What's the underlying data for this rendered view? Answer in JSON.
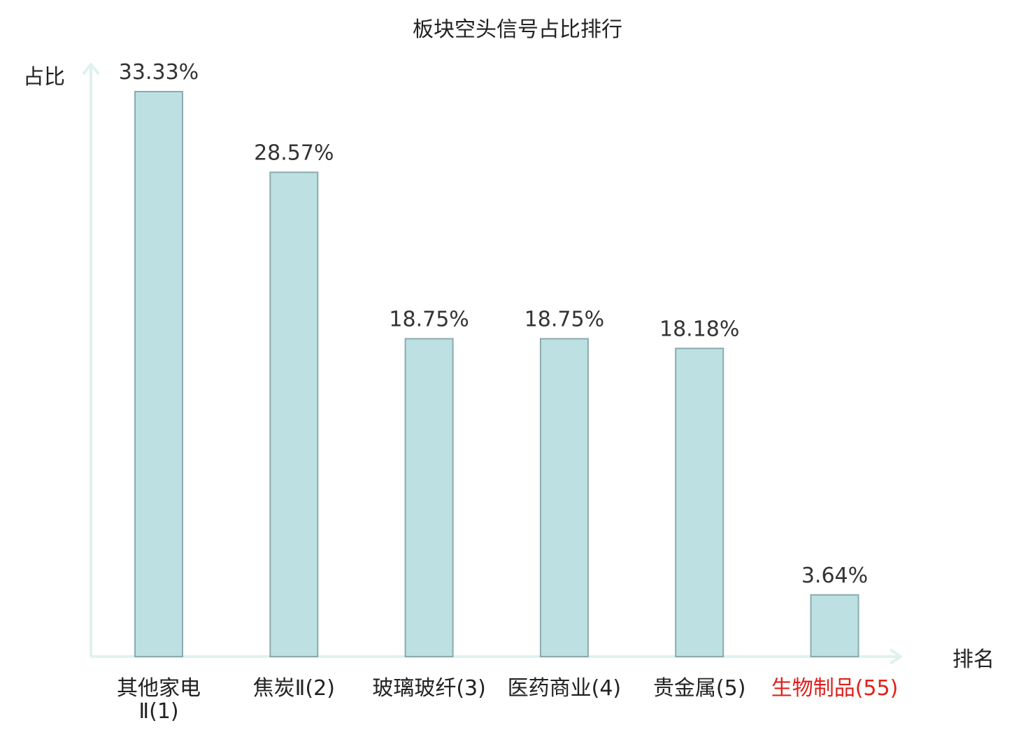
{
  "chart_data": {
    "type": "bar",
    "title": "板块空头信号占比排行",
    "xlabel": "排名",
    "ylabel": "占比",
    "categories": [
      [
        "其他家电",
        "Ⅱ(1)"
      ],
      [
        "焦炭Ⅱ(2)"
      ],
      [
        "玻璃玻纤(3)"
      ],
      [
        "医药商业(4)"
      ],
      [
        "贵金属(5)"
      ],
      [
        "生物制品(55)"
      ]
    ],
    "values": [
      33.33,
      28.57,
      18.75,
      18.75,
      18.18,
      3.64
    ],
    "value_labels": [
      "33.33%",
      "28.57%",
      "18.75%",
      "18.75%",
      "18.18%",
      "3.64%"
    ],
    "highlight_index": 5,
    "ylim": [
      0,
      35
    ],
    "grid": false,
    "legend": "none",
    "colors": {
      "bar_fill": "#bde0e3",
      "bar_stroke": "#8aabae",
      "axis": "#dff1ee",
      "text": "#222222",
      "value_text": "#333333",
      "highlight_text": "#e0201c"
    }
  }
}
